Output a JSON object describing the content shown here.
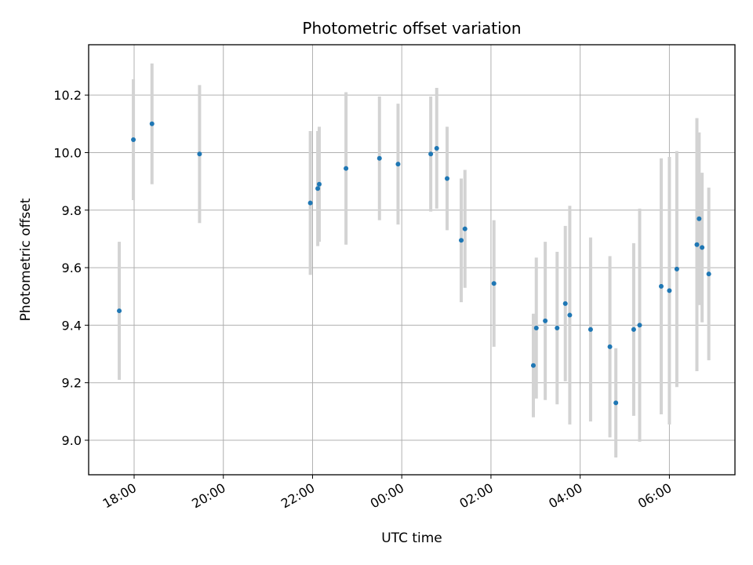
{
  "chart_data": {
    "type": "scatter",
    "title": "Photometric offset variation",
    "xlabel": "UTC time",
    "ylabel": "Photometric offset",
    "grid": true,
    "x_tick_labels": [
      "18:00",
      "20:00",
      "22:00",
      "00:00",
      "02:00",
      "04:00",
      "06:00"
    ],
    "x_ticks_hours": [
      18,
      20,
      22,
      24,
      26,
      28,
      30
    ],
    "y_ticks": [
      9.0,
      9.2,
      9.4,
      9.6,
      9.8,
      10.0,
      10.2
    ],
    "y_tick_labels": [
      "9.0",
      "9.2",
      "9.4",
      "9.6",
      "9.8",
      "10.0",
      "10.2"
    ],
    "xlim_hours": [
      16.98,
      31.47
    ],
    "ylim": [
      8.88,
      10.375
    ],
    "colors": {
      "point": "#1f77b4",
      "errorbar": "#d3d3d3",
      "grid": "#b0b0b0"
    },
    "points": [
      {
        "t": "17:40",
        "y": 9.45,
        "err": 0.24
      },
      {
        "t": "17:59",
        "y": 10.045,
        "err": 0.21
      },
      {
        "t": "18:24",
        "y": 10.1,
        "err": 0.21
      },
      {
        "t": "19:28",
        "y": 9.995,
        "err": 0.24
      },
      {
        "t": "21:57",
        "y": 9.825,
        "err": 0.25
      },
      {
        "t": "22:07",
        "y": 9.875,
        "err": 0.2
      },
      {
        "t": "22:09",
        "y": 9.89,
        "err": 0.2
      },
      {
        "t": "22:45",
        "y": 9.945,
        "err": 0.265
      },
      {
        "t": "23:30",
        "y": 9.98,
        "err": 0.215
      },
      {
        "t": "23:55",
        "y": 9.96,
        "err": 0.21
      },
      {
        "t": "00:39",
        "y": 9.995,
        "err": 0.2
      },
      {
        "t": "00:47",
        "y": 10.015,
        "err": 0.21
      },
      {
        "t": "01:01",
        "y": 9.91,
        "err": 0.18
      },
      {
        "t": "01:20",
        "y": 9.695,
        "err": 0.215
      },
      {
        "t": "01:25",
        "y": 9.735,
        "err": 0.205
      },
      {
        "t": "02:04",
        "y": 9.545,
        "err": 0.22
      },
      {
        "t": "02:57",
        "y": 9.26,
        "err": 0.18
      },
      {
        "t": "03:01",
        "y": 9.39,
        "err": 0.245
      },
      {
        "t": "03:13",
        "y": 9.415,
        "err": 0.275
      },
      {
        "t": "03:29",
        "y": 9.39,
        "err": 0.265
      },
      {
        "t": "03:40",
        "y": 9.475,
        "err": 0.27
      },
      {
        "t": "03:46",
        "y": 9.435,
        "err": 0.38
      },
      {
        "t": "04:14",
        "y": 9.385,
        "err": 0.32
      },
      {
        "t": "04:40",
        "y": 9.325,
        "err": 0.315
      },
      {
        "t": "04:48",
        "y": 9.13,
        "err": 0.19
      },
      {
        "t": "05:12",
        "y": 9.385,
        "err": 0.3
      },
      {
        "t": "05:20",
        "y": 9.4,
        "err": 0.405
      },
      {
        "t": "05:49",
        "y": 9.535,
        "err": 0.445
      },
      {
        "t": "06:00",
        "y": 9.52,
        "err": 0.465
      },
      {
        "t": "06:10",
        "y": 9.595,
        "err": 0.41
      },
      {
        "t": "06:37",
        "y": 9.68,
        "err": 0.44
      },
      {
        "t": "06:40",
        "y": 9.77,
        "err": 0.3
      },
      {
        "t": "06:44",
        "y": 9.67,
        "err": 0.26
      },
      {
        "t": "06:53",
        "y": 9.578,
        "err": 0.3
      }
    ]
  }
}
